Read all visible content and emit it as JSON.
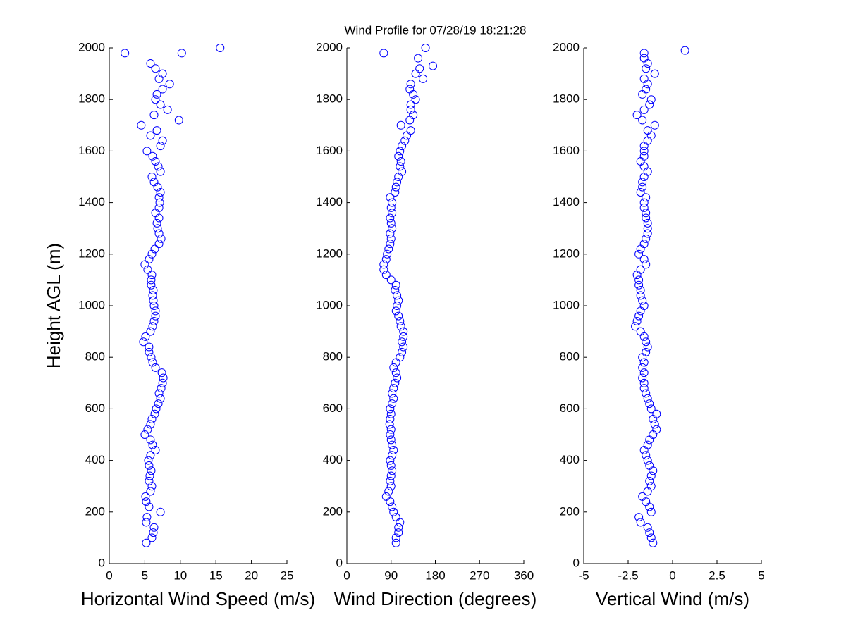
{
  "chart_data": [
    {
      "type": "scatter",
      "xlabel": "Horizontal Wind Speed (m/s)",
      "ylabel": "Height AGL (m)",
      "color": "#0000ff",
      "xlim": [
        0,
        25
      ],
      "xticks": [
        0,
        5,
        10,
        15,
        20,
        25
      ],
      "ylim": [
        0,
        2000
      ],
      "yticks": [
        0,
        200,
        400,
        600,
        800,
        1000,
        1200,
        1400,
        1600,
        1800,
        2000
      ],
      "x": [
        5.2,
        6.0,
        6.2,
        6.3,
        5.2,
        5.3,
        7.2,
        5.6,
        5.2,
        5.1,
        5.8,
        6.0,
        5.6,
        5.7,
        5.9,
        5.6,
        5.5,
        5.8,
        6.5,
        6.1,
        5.8,
        5.0,
        5.4,
        5.8,
        6.0,
        6.4,
        6.6,
        6.9,
        7.2,
        7.0,
        7.3,
        7.5,
        7.6,
        7.4,
        6.5,
        6.1,
        5.9,
        5.6,
        5.6,
        4.8,
        5.1,
        5.8,
        6.1,
        6.3,
        6.5,
        6.5,
        6.3,
        6.2,
        6.1,
        6.2,
        5.9,
        5.9,
        6.0,
        5.4,
        5.0,
        5.6,
        6.0,
        6.4,
        7.0,
        7.3,
        7.0,
        6.8,
        6.7,
        7.0,
        6.5,
        7.0,
        7.1,
        7.0,
        7.2,
        6.8,
        6.3,
        6.0,
        7.2,
        6.9,
        6.5,
        6.1,
        5.3,
        7.2,
        7.5,
        5.8,
        6.7,
        4.5,
        9.8,
        6.3,
        8.2,
        7.2,
        6.5,
        6.7,
        7.5,
        8.5,
        7.0,
        7.5,
        6.5,
        5.8,
        10.2,
        2.2,
        15.6
      ],
      "y": [
        80,
        100,
        120,
        140,
        160,
        180,
        200,
        220,
        240,
        260,
        280,
        300,
        320,
        340,
        360,
        380,
        400,
        420,
        440,
        460,
        480,
        500,
        520,
        540,
        560,
        580,
        600,
        620,
        640,
        660,
        680,
        700,
        720,
        740,
        760,
        780,
        800,
        820,
        840,
        860,
        880,
        900,
        920,
        940,
        960,
        980,
        1000,
        1020,
        1040,
        1060,
        1080,
        1100,
        1120,
        1140,
        1160,
        1180,
        1200,
        1220,
        1240,
        1260,
        1280,
        1300,
        1320,
        1340,
        1360,
        1380,
        1400,
        1420,
        1440,
        1460,
        1480,
        1500,
        1520,
        1540,
        1560,
        1580,
        1600,
        1620,
        1640,
        1660,
        1680,
        1700,
        1720,
        1740,
        1760,
        1780,
        1800,
        1820,
        1840,
        1860,
        1880,
        1900,
        1920,
        1940,
        1980,
        1980,
        2000
      ]
    },
    {
      "type": "scatter",
      "title": "Wind Profile for  07/28/19 18:21:28",
      "xlabel": "Wind Direction (degrees)",
      "color": "#0000ff",
      "xlim": [
        0,
        360
      ],
      "xticks": [
        0,
        90,
        180,
        270,
        360
      ],
      "ylim": [
        0,
        2000
      ],
      "yticks": [
        0,
        200,
        400,
        600,
        800,
        1000,
        1200,
        1400,
        1600,
        1800,
        2000
      ],
      "x": [
        100,
        100,
        105,
        105,
        108,
        100,
        95,
        92,
        88,
        80,
        85,
        90,
        88,
        90,
        92,
        90,
        88,
        92,
        95,
        92,
        90,
        88,
        90,
        87,
        88,
        90,
        88,
        92,
        95,
        92,
        95,
        98,
        102,
        100,
        95,
        100,
        108,
        112,
        115,
        112,
        115,
        115,
        110,
        108,
        105,
        100,
        102,
        105,
        102,
        98,
        100,
        90,
        80,
        75,
        75,
        80,
        82,
        85,
        88,
        90,
        88,
        92,
        90,
        88,
        92,
        90,
        92,
        88,
        98,
        100,
        102,
        105,
        112,
        108,
        110,
        105,
        108,
        112,
        118,
        122,
        130,
        110,
        128,
        135,
        130,
        130,
        140,
        135,
        128,
        130,
        155,
        140,
        148,
        175,
        145,
        75,
        160
      ],
      "y": [
        80,
        100,
        120,
        140,
        160,
        180,
        200,
        220,
        240,
        260,
        280,
        300,
        320,
        340,
        360,
        380,
        400,
        420,
        440,
        460,
        480,
        500,
        520,
        540,
        560,
        580,
        600,
        620,
        640,
        660,
        680,
        700,
        720,
        740,
        760,
        780,
        800,
        820,
        840,
        860,
        880,
        900,
        920,
        940,
        960,
        980,
        1000,
        1020,
        1040,
        1060,
        1080,
        1100,
        1120,
        1140,
        1160,
        1180,
        1200,
        1220,
        1240,
        1260,
        1280,
        1300,
        1320,
        1340,
        1360,
        1380,
        1400,
        1420,
        1440,
        1460,
        1480,
        1500,
        1520,
        1540,
        1560,
        1580,
        1600,
        1620,
        1640,
        1660,
        1680,
        1700,
        1720,
        1740,
        1760,
        1780,
        1800,
        1820,
        1840,
        1860,
        1880,
        1900,
        1920,
        1930,
        1960,
        1980,
        2000
      ]
    },
    {
      "type": "scatter",
      "xlabel": "Vertical Wind (m/s)",
      "color": "#0000ff",
      "xlim": [
        -5,
        5
      ],
      "xticks": [
        -5,
        -2.5,
        0,
        2.5,
        5
      ],
      "ylim": [
        0,
        2000
      ],
      "yticks": [
        0,
        200,
        400,
        600,
        800,
        1000,
        1200,
        1400,
        1600,
        1800,
        2000
      ],
      "x": [
        -1.1,
        -1.2,
        -1.3,
        -1.4,
        -1.8,
        -1.9,
        -1.2,
        -1.3,
        -1.5,
        -1.7,
        -1.4,
        -1.2,
        -1.3,
        -1.2,
        -1.1,
        -1.3,
        -1.4,
        -1.5,
        -1.6,
        -1.4,
        -1.3,
        -1.1,
        -0.9,
        -1.0,
        -1.1,
        -0.9,
        -1.2,
        -1.3,
        -1.4,
        -1.5,
        -1.6,
        -1.6,
        -1.7,
        -1.6,
        -1.7,
        -1.6,
        -1.7,
        -1.5,
        -1.4,
        -1.5,
        -1.6,
        -1.8,
        -2.1,
        -2.0,
        -1.9,
        -1.8,
        -1.6,
        -1.7,
        -1.8,
        -1.8,
        -1.9,
        -1.9,
        -2.0,
        -1.8,
        -1.5,
        -1.6,
        -1.9,
        -1.8,
        -1.6,
        -1.5,
        -1.4,
        -1.4,
        -1.4,
        -1.5,
        -1.5,
        -1.6,
        -1.6,
        -1.5,
        -1.8,
        -1.7,
        -1.7,
        -1.6,
        -1.4,
        -1.6,
        -1.8,
        -1.6,
        -1.6,
        -1.6,
        -1.4,
        -1.2,
        -1.4,
        -1.0,
        -1.7,
        -2.0,
        -1.6,
        -1.3,
        -1.2,
        -1.7,
        -1.5,
        -1.4,
        -1.6,
        -1.0,
        -1.5,
        -1.4,
        -1.6,
        -1.6,
        0.7
      ],
      "y": [
        80,
        100,
        120,
        140,
        160,
        180,
        200,
        220,
        240,
        260,
        280,
        300,
        320,
        340,
        360,
        380,
        400,
        420,
        440,
        460,
        480,
        500,
        520,
        540,
        560,
        580,
        600,
        620,
        640,
        660,
        680,
        700,
        720,
        740,
        760,
        780,
        800,
        820,
        840,
        860,
        880,
        900,
        920,
        940,
        960,
        980,
        1000,
        1020,
        1040,
        1060,
        1080,
        1100,
        1120,
        1140,
        1160,
        1180,
        1200,
        1220,
        1240,
        1260,
        1280,
        1300,
        1320,
        1340,
        1360,
        1380,
        1400,
        1420,
        1440,
        1460,
        1480,
        1500,
        1520,
        1540,
        1560,
        1580,
        1600,
        1620,
        1640,
        1660,
        1680,
        1700,
        1720,
        1740,
        1760,
        1780,
        1800,
        1820,
        1840,
        1860,
        1880,
        1900,
        1920,
        1940,
        1960,
        1980,
        1990
      ]
    }
  ]
}
